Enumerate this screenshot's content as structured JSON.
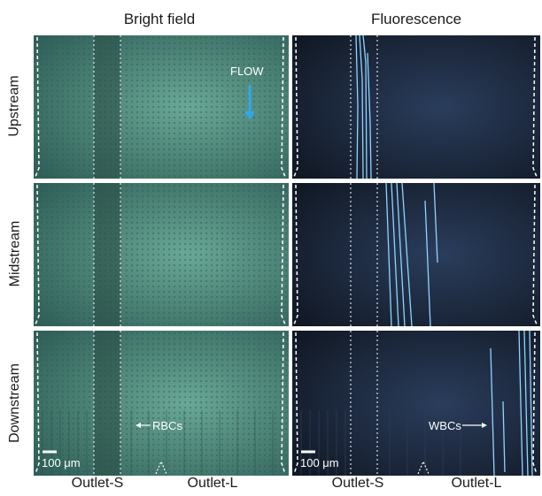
{
  "columns": {
    "left": "Bright field",
    "right": "Fluorescence"
  },
  "rows": [
    "Upstream",
    "Midstream",
    "Downstream"
  ],
  "bottom_labels": {
    "left_s": "Outlet-S",
    "left_l": "Outlet-L",
    "right_s": "Outlet-S",
    "right_l": "Outlet-L"
  },
  "annotations": {
    "flow": "FLOW",
    "rbcs": "RBCs",
    "wbcs": "WBCs",
    "scale_left": "100 μm",
    "scale_right": "100 μm"
  },
  "colors": {
    "brightfield": "#3d7a70",
    "fluorescence": "#1c2a40",
    "flow_arrow": "#2fa8e8",
    "cell_trace": "#8fd4ff"
  }
}
